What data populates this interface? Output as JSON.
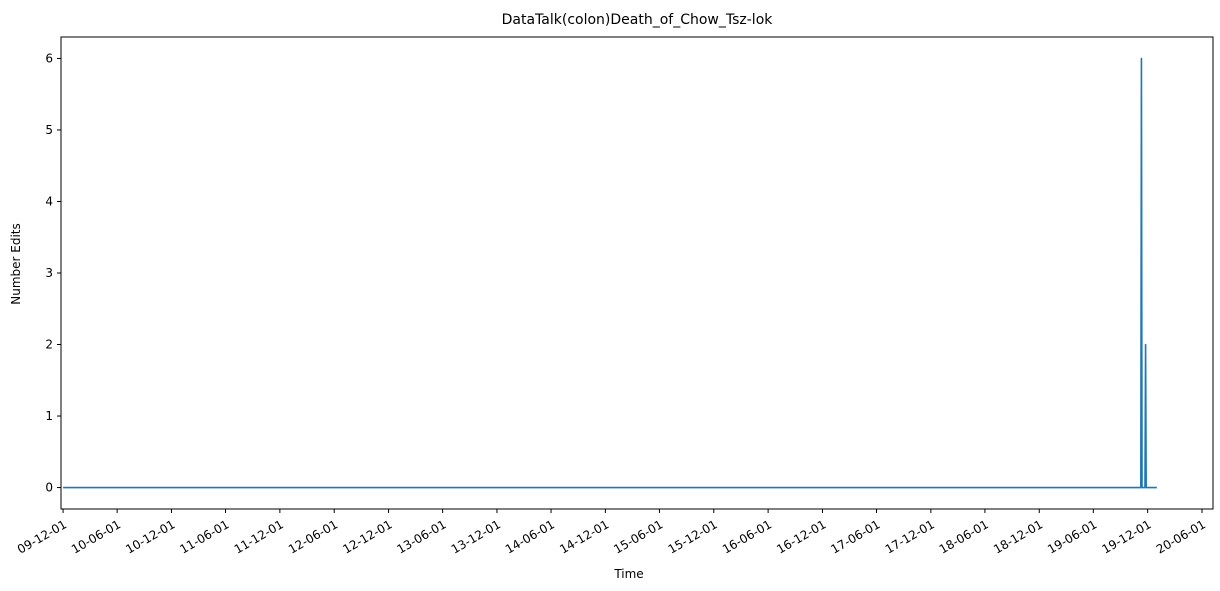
{
  "chart_data": {
    "type": "line",
    "title": "DataTalk(colon)Death_of_Chow_Tsz-lok",
    "xlabel": "Time",
    "ylabel": "Number Edits",
    "xlim": [
      "2009-11-24",
      "2020-07-08"
    ],
    "ylim": [
      -0.3,
      6.3
    ],
    "grid": false,
    "x_ticks": [
      "09-12-01",
      "10-06-01",
      "10-12-01",
      "11-06-01",
      "11-12-01",
      "12-06-01",
      "12-12-01",
      "13-06-01",
      "13-12-01",
      "14-06-01",
      "14-12-01",
      "15-06-01",
      "15-12-01",
      "16-06-01",
      "16-12-01",
      "17-06-01",
      "17-12-01",
      "18-06-01",
      "18-12-01",
      "19-06-01",
      "19-12-01",
      "20-06-01"
    ],
    "x_tick_dates": [
      "2009-12-01",
      "2010-06-01",
      "2010-12-01",
      "2011-06-01",
      "2011-12-01",
      "2012-06-01",
      "2012-12-01",
      "2013-06-01",
      "2013-12-01",
      "2014-06-01",
      "2014-12-01",
      "2015-06-01",
      "2015-12-01",
      "2016-06-01",
      "2016-12-01",
      "2017-06-01",
      "2017-12-01",
      "2018-06-01",
      "2018-12-01",
      "2019-06-01",
      "2019-12-01",
      "2020-06-01"
    ],
    "y_ticks": [
      0,
      1,
      2,
      3,
      4,
      5,
      6
    ],
    "series": [
      {
        "color": "#1f77b4",
        "points": [
          {
            "x": "2009-12-01",
            "y": 0
          },
          {
            "x": "2019-11-08",
            "y": 0
          },
          {
            "x": "2019-11-10",
            "y": 6
          },
          {
            "x": "2019-11-12",
            "y": 0
          },
          {
            "x": "2019-11-22",
            "y": 0
          },
          {
            "x": "2019-11-24",
            "y": 2
          },
          {
            "x": "2019-11-26",
            "y": 0
          },
          {
            "x": "2020-01-01",
            "y": 0
          }
        ]
      }
    ]
  }
}
